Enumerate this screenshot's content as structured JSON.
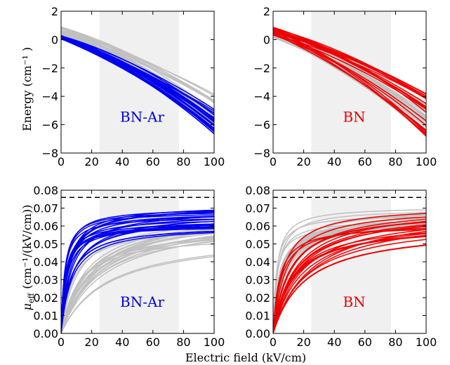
{
  "figure": {
    "xlabel": "Electric field (kV/cm)",
    "ylabel_top": "Energy (cm⁻¹ )",
    "ylabel_bottom_prefix": "μ",
    "ylabel_bottom_sub": "eff",
    "ylabel_bottom_suffix": "(cm⁻¹/(kV/cm))"
  },
  "colors": {
    "bn_ar": "#0000ee",
    "bn": "#ee0000",
    "background_curves": "#c0c0c0",
    "shade": "#f0f0f0"
  },
  "chart_data": [
    {
      "type": "line",
      "panel": "top-left",
      "label": "BN-Ar",
      "label_color": "#0000ee",
      "xlim": [
        0,
        100
      ],
      "ylim": [
        -8,
        2
      ],
      "xticks": [
        0,
        20,
        40,
        60,
        80,
        100
      ],
      "yticks": [
        -8,
        -6,
        -4,
        -2,
        0,
        2
      ],
      "ylabel": "Energy (cm⁻¹ )",
      "shaded_x": [
        25,
        77
      ],
      "highlight_color": "#0000ee",
      "background_series": {
        "count": 20,
        "y0_range": [
          0.2,
          0.9
        ],
        "y100_range": [
          -6.5,
          -3.5
        ]
      },
      "highlight_series": {
        "count": 28,
        "y0_range": [
          0.05,
          0.3
        ],
        "y100_range": [
          -6.9,
          -4.9
        ]
      }
    },
    {
      "type": "line",
      "panel": "top-right",
      "label": "BN",
      "label_color": "#ee0000",
      "xlim": [
        0,
        100
      ],
      "ylim": [
        -8,
        2
      ],
      "xticks": [
        0,
        20,
        40,
        60,
        80,
        100
      ],
      "yticks": [
        -8,
        -6,
        -4,
        -2,
        0,
        2
      ],
      "shaded_x": [
        25,
        77
      ],
      "highlight_color": "#ee0000",
      "background_series": {
        "count": 28,
        "y0_range": [
          0.05,
          0.8
        ],
        "y100_range": [
          -6.8,
          -4.5
        ]
      },
      "highlight_series": {
        "count": 20,
        "y0_range": [
          0.3,
          0.9
        ],
        "y100_range": [
          -6.9,
          -3.5
        ]
      }
    },
    {
      "type": "line",
      "panel": "bottom-left",
      "label": "BN-Ar",
      "label_color": "#0000ee",
      "xlim": [
        0,
        100
      ],
      "ylim": [
        0,
        0.08
      ],
      "xticks": [
        0,
        20,
        40,
        60,
        80,
        100
      ],
      "yticks": [
        0.0,
        0.01,
        0.02,
        0.03,
        0.04,
        0.05,
        0.06,
        0.07,
        0.08
      ],
      "reference_line_y": 0.076,
      "shaded_x": [
        25,
        77
      ],
      "highlight_color": "#0000ee",
      "background_series": {
        "count": 22,
        "saturation_range": [
          0.055,
          0.072
        ],
        "x_half_range": [
          8,
          30
        ]
      },
      "highlight_series": {
        "count": 24,
        "saturation_range": [
          0.06,
          0.072
        ],
        "x_half_range": [
          2,
          8
        ]
      }
    },
    {
      "type": "line",
      "panel": "bottom-right",
      "label": "BN",
      "label_color": "#ee0000",
      "xlim": [
        0,
        100
      ],
      "ylim": [
        0,
        0.08
      ],
      "xticks": [
        0,
        20,
        40,
        60,
        80,
        100
      ],
      "yticks": [
        0.0,
        0.01,
        0.02,
        0.03,
        0.04,
        0.05,
        0.06,
        0.07,
        0.08
      ],
      "reference_line_y": 0.076,
      "shaded_x": [
        25,
        77
      ],
      "highlight_color": "#ee0000",
      "background_series": {
        "count": 24,
        "saturation_range": [
          0.06,
          0.072
        ],
        "x_half_range": [
          2,
          8
        ]
      },
      "highlight_series": {
        "count": 22,
        "saturation_range": [
          0.058,
          0.072
        ],
        "x_half_range": [
          4,
          25
        ]
      }
    }
  ]
}
